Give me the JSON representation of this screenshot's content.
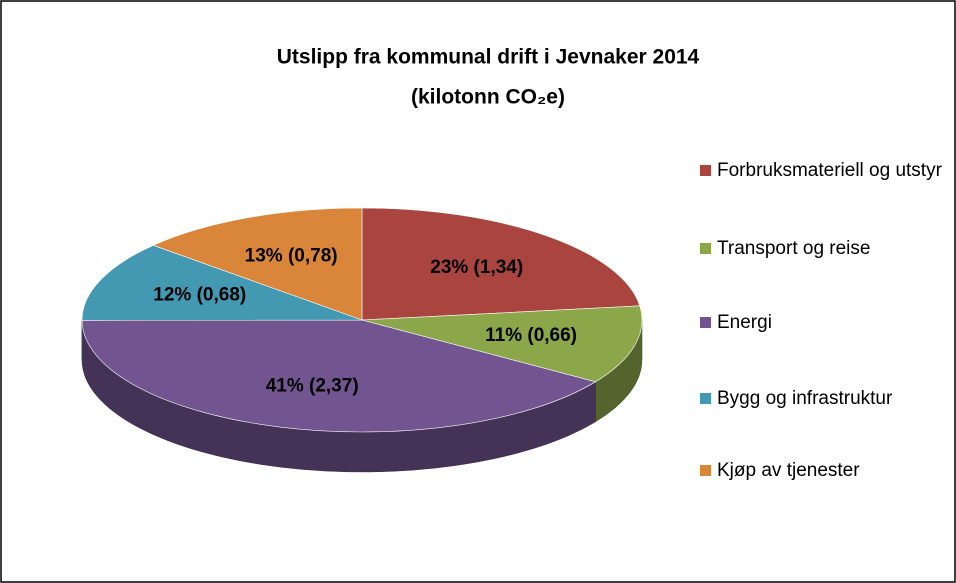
{
  "chart_data": {
    "type": "pie3d",
    "title": "Utslipp fra kommunal drift i Jevnaker 2014",
    "subtitle": "(kilotonn CO₂e)",
    "categories": [
      "Forbruksmateriell og utstyr",
      "Transport og reise",
      "Energi",
      "Bygg og infrastruktur",
      "Kjøp av tjenester"
    ],
    "values": [
      1.34,
      0.66,
      2.37,
      0.68,
      0.78
    ],
    "value_labels": [
      "23% (1,34)",
      "11% (0,66)",
      "41% (2,37)",
      "12% (0,68)",
      "13% (0,78)"
    ],
    "colors": [
      "#a9443f",
      "#8ca74a",
      "#725590",
      "#4398b2",
      "#d9853a"
    ],
    "legend": "right"
  }
}
